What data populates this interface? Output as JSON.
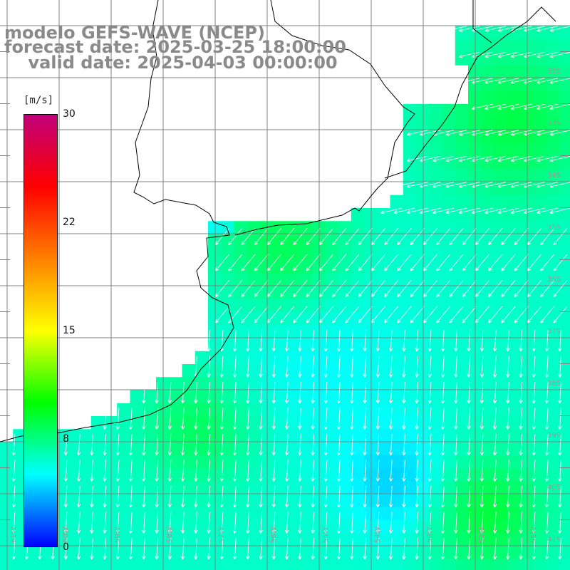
{
  "title": {
    "line1": "modelo GEFS-WAVE (NCEP)",
    "line2": "forecast date: 2025-03-25 18:00:00",
    "line3": "    valid date: 2025-04-03 00:00:00"
  },
  "legend": {
    "unit": "[m/s]",
    "ticks": [
      "30",
      "22",
      "15",
      "8",
      "0"
    ],
    "colors": [
      "#0000ff",
      "#00ffff",
      "#00ff00",
      "#ffff00",
      "#ff8000",
      "#ff0000",
      "#c0007a"
    ]
  },
  "latitude_labels": [
    "32S",
    "33S",
    "34S",
    "35S",
    "36S",
    "37S",
    "38S",
    "39S",
    "40S",
    "41S"
  ],
  "longitude_labels": [
    "61W",
    "60W",
    "59W",
    "58W",
    "57W",
    "56W",
    "55W",
    "54W",
    "53W",
    "52W",
    "51W"
  ],
  "field": {
    "variable": "wind speed",
    "unit": "m/s",
    "range": [
      0,
      30
    ]
  }
}
